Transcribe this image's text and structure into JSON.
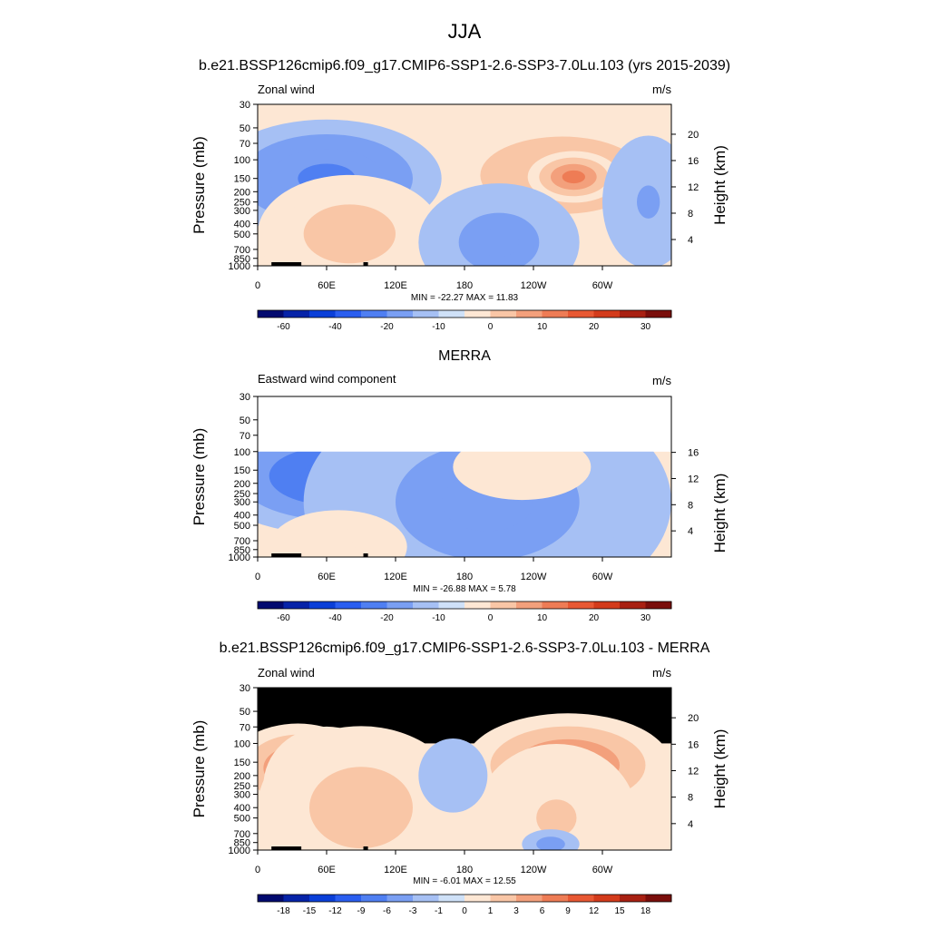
{
  "figure": {
    "title": "JJA"
  },
  "panels": [
    {
      "title": "b.e21.BSSP126cmip6.f09_g17.CMIP6-SSP1-2.6-SSP3-7.0Lu.103 (yrs 2015-2039)",
      "left_label": "Zonal wind",
      "right_label": "m/s",
      "stats": "MIN = -22.27  MAX =  11.83"
    },
    {
      "title": "MERRA",
      "left_label": "Eastward wind component",
      "right_label": "m/s",
      "stats": "MIN = -26.88  MAX =   5.78"
    },
    {
      "title": "b.e21.BSSP126cmip6.f09_g17.CMIP6-SSP1-2.6-SSP3-7.0Lu.103 - MERRA",
      "left_label": "Zonal wind",
      "right_label": "m/s",
      "stats": "MIN =  -6.01  MAX =  12.55"
    }
  ],
  "chart_data": [
    {
      "type": "heatmap",
      "ylabel": "Pressure (mb)",
      "y2label": "Height (km)",
      "x_ticks": [
        "0",
        "60E",
        "120E",
        "180",
        "120W",
        "60W"
      ],
      "x_tick_values": [
        0,
        60,
        120,
        180,
        240,
        300
      ],
      "xlim": [
        0,
        360
      ],
      "y_ticks": [
        30,
        50,
        70,
        100,
        150,
        200,
        250,
        300,
        400,
        500,
        700,
        850,
        1000
      ],
      "ylim": [
        1000,
        30
      ],
      "y_scale": "log",
      "y2_ticks": [
        4,
        8,
        12,
        16,
        20
      ],
      "colorbar_labels": [
        "-60",
        "-40",
        "-20",
        "-10",
        "0",
        "10",
        "20",
        "30"
      ],
      "colorbar_colors": [
        "#020a6f",
        "#0623a8",
        "#0a3fd8",
        "#2a5ef0",
        "#4f7ff2",
        "#7a9ff3",
        "#a6c0f4",
        "#cfe1f8",
        "#fde7d4",
        "#f9c6a6",
        "#f3a07c",
        "#ee7c55",
        "#e85833",
        "#d33b1b",
        "#a82012",
        "#7a0e0b"
      ],
      "data_extent": [
        30,
        1000
      ],
      "blobs": [
        {
          "lon": 65,
          "p": 140,
          "rx": 70,
          "ry": 0.55,
          "v": -20
        },
        {
          "lon": 60,
          "p": 150,
          "rx": 100,
          "ry": 0.8,
          "v": -9
        },
        {
          "lon": 265,
          "p": 140,
          "rx": 95,
          "ry": 0.7,
          "v": 10
        },
        {
          "lon": 275,
          "p": 145,
          "rx": 40,
          "ry": 0.35,
          "v": 16
        },
        {
          "lon": 80,
          "p": 500,
          "rx": 80,
          "ry": 0.8,
          "v": 6
        },
        {
          "lon": 210,
          "p": 600,
          "rx": 70,
          "ry": 0.8,
          "v": -6
        },
        {
          "lon": 340,
          "p": 250,
          "rx": 40,
          "ry": 0.9,
          "v": -5
        }
      ]
    },
    {
      "type": "heatmap",
      "ylabel": "Pressure (mb)",
      "y2label": "Height (km)",
      "x_ticks": [
        "0",
        "60E",
        "120E",
        "180",
        "120W",
        "60W"
      ],
      "x_tick_values": [
        0,
        60,
        120,
        180,
        240,
        300
      ],
      "xlim": [
        0,
        360
      ],
      "y_ticks": [
        30,
        50,
        70,
        100,
        150,
        200,
        250,
        300,
        400,
        500,
        700,
        850,
        1000
      ],
      "ylim": [
        1000,
        30
      ],
      "y_scale": "log",
      "y2_ticks": [
        4,
        8,
        12,
        16
      ],
      "colorbar_labels": [
        "-60",
        "-40",
        "-20",
        "-10",
        "0",
        "10",
        "20",
        "30"
      ],
      "colorbar_colors": [
        "#020a6f",
        "#0623a8",
        "#0a3fd8",
        "#2a5ef0",
        "#4f7ff2",
        "#7a9ff3",
        "#a6c0f4",
        "#cfe1f8",
        "#fde7d4",
        "#f9c6a6",
        "#f3a07c",
        "#ee7c55",
        "#e85833",
        "#d33b1b",
        "#a82012",
        "#7a0e0b"
      ],
      "data_extent": [
        100,
        1000
      ],
      "blobs": [
        {
          "lon": 70,
          "p": 150,
          "rx": 70,
          "ry": 0.45,
          "v": -28
        },
        {
          "lon": 65,
          "p": 170,
          "rx": 110,
          "ry": 0.8,
          "v": -12
        },
        {
          "lon": 200,
          "p": 300,
          "rx": 160,
          "ry": 1.6,
          "v": -6
        },
        {
          "lon": 230,
          "p": 140,
          "rx": 60,
          "ry": 0.45,
          "v": 4
        },
        {
          "lon": 70,
          "p": 800,
          "rx": 60,
          "ry": 0.5,
          "v": 4
        }
      ]
    },
    {
      "type": "heatmap",
      "ylabel": "Pressure (mb)",
      "y2label": "Height (km)",
      "x_ticks": [
        "0",
        "60E",
        "120E",
        "180",
        "120W",
        "60W"
      ],
      "x_tick_values": [
        0,
        60,
        120,
        180,
        240,
        300
      ],
      "xlim": [
        0,
        360
      ],
      "y_ticks": [
        30,
        50,
        70,
        100,
        150,
        200,
        250,
        300,
        400,
        500,
        700,
        850,
        1000
      ],
      "ylim": [
        1000,
        30
      ],
      "y_scale": "log",
      "y2_ticks": [
        4,
        8,
        12,
        16,
        20
      ],
      "colorbar_labels": [
        "-18",
        "-15",
        "-12",
        "-9",
        "-6",
        "-3",
        "-1",
        "0",
        "1",
        "3",
        "6",
        "9",
        "12",
        "15",
        "18"
      ],
      "colorbar_colors": [
        "#020a6f",
        "#0623a8",
        "#0a3fd8",
        "#2a5ef0",
        "#4f7ff2",
        "#7a9ff3",
        "#a6c0f4",
        "#cfe1f8",
        "#fde7d4",
        "#f9c6a6",
        "#f3a07c",
        "#ee7c55",
        "#e85833",
        "#d33b1b",
        "#a82012",
        "#7a0e0b"
      ],
      "data_extent": [
        100,
        1000
      ],
      "masked_extent": [
        30,
        100
      ],
      "blobs": [
        {
          "lon": 35,
          "p": 170,
          "rx": 60,
          "ry": 0.6,
          "v": 10
        },
        {
          "lon": 60,
          "p": 250,
          "rx": 55,
          "ry": 0.8,
          "v": 6
        },
        {
          "lon": 270,
          "p": 160,
          "rx": 90,
          "ry": 0.7,
          "v": 8
        },
        {
          "lon": 90,
          "p": 400,
          "rx": 90,
          "ry": 1.1,
          "v": 4
        },
        {
          "lon": 260,
          "p": 500,
          "rx": 70,
          "ry": 1.0,
          "v": 3
        },
        {
          "lon": 170,
          "p": 200,
          "rx": 30,
          "ry": 0.5,
          "v": -2
        },
        {
          "lon": 255,
          "p": 880,
          "rx": 25,
          "ry": 0.2,
          "v": -4
        }
      ]
    }
  ]
}
